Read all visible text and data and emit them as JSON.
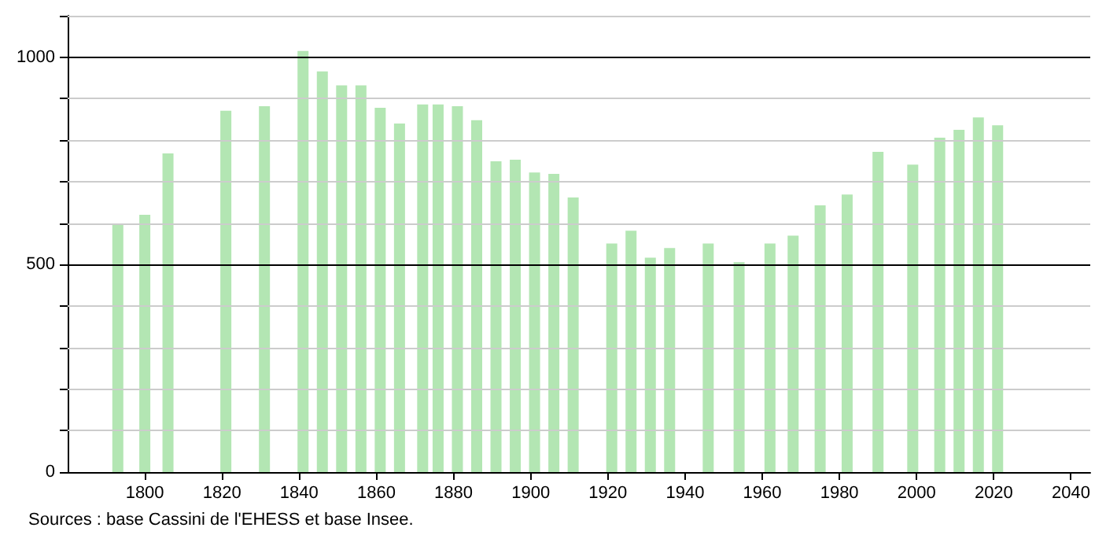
{
  "chart_data": {
    "type": "bar",
    "color": "#b3e6b3",
    "x": [
      1793,
      1800,
      1806,
      1821,
      1831,
      1841,
      1846,
      1851,
      1856,
      1861,
      1866,
      1872,
      1876,
      1881,
      1886,
      1891,
      1896,
      1901,
      1906,
      1911,
      1921,
      1926,
      1931,
      1936,
      1946,
      1954,
      1962,
      1968,
      1975,
      1982,
      1990,
      1999,
      2006,
      2011,
      2016,
      2021
    ],
    "values": [
      597,
      620,
      768,
      871,
      882,
      1015,
      966,
      932,
      932,
      878,
      840,
      886,
      886,
      882,
      848,
      749,
      753,
      722,
      719,
      662,
      551,
      582,
      517,
      540,
      551,
      506,
      551,
      570,
      643,
      669,
      772,
      741,
      806,
      825,
      855,
      836
    ],
    "xlim": [
      1780,
      2045
    ],
    "xticks": [
      1800,
      1820,
      1840,
      1860,
      1880,
      1900,
      1920,
      1940,
      1960,
      1980,
      2000,
      2020,
      2040
    ],
    "ylim": [
      0,
      1100
    ],
    "yticks": [
      0,
      {
        "value": 100,
        "label": null
      },
      {
        "value": 200,
        "label": null
      },
      {
        "value": 300,
        "label": null
      },
      {
        "value": 400,
        "label": null
      },
      500,
      {
        "value": 600,
        "label": null
      },
      {
        "value": 700,
        "label": null
      },
      {
        "value": 800,
        "label": null
      },
      {
        "value": 900,
        "label": null
      },
      1000,
      {
        "value": 1100,
        "label": null
      }
    ],
    "grid": "y",
    "annotations": [
      "Sources : base Cassini de l'EHESS et base Insee."
    ]
  }
}
